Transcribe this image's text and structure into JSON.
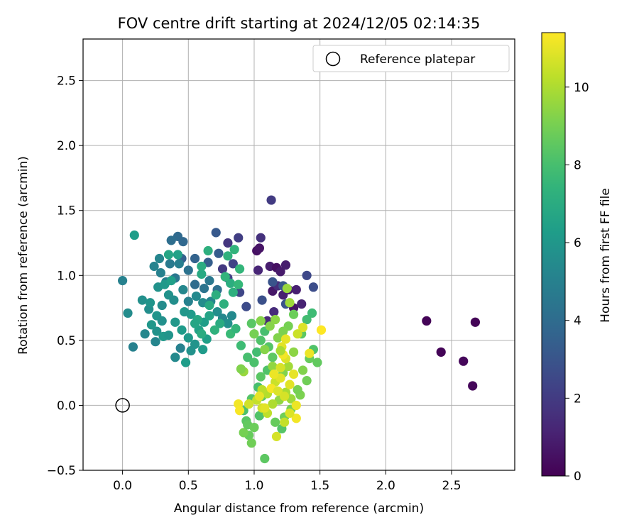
{
  "chart_data": {
    "type": "scatter",
    "title": "FOV centre drift starting at 2024/12/05 02:14:35",
    "xlabel": "Angular distance from reference (arcmin)",
    "ylabel": "Rotation from reference (arcmin)",
    "xlim": [
      -0.3,
      2.98
    ],
    "ylim": [
      -0.5,
      2.82
    ],
    "xticks": [
      0.0,
      0.5,
      1.0,
      1.5,
      2.0,
      2.5
    ],
    "xtick_labels": [
      "0.0",
      "0.5",
      "1.0",
      "1.5",
      "2.0",
      "2.5"
    ],
    "yticks": [
      -0.5,
      0.0,
      0.5,
      1.0,
      1.5,
      2.0,
      2.5
    ],
    "ytick_labels": [
      "−0.5",
      "0.0",
      "0.5",
      "1.0",
      "1.5",
      "2.0",
      "2.5"
    ],
    "grid": true,
    "legend": {
      "placement": "top-right",
      "entries": [
        "Reference platepar"
      ]
    },
    "reference_point": {
      "x": 0.0,
      "y": 0.0
    },
    "colorbar": {
      "label": "Hours from first FF file",
      "range": [
        0,
        11.4
      ],
      "ticks": [
        0,
        2,
        4,
        6,
        8,
        10
      ],
      "tick_labels": [
        "0",
        "2",
        "4",
        "6",
        "8",
        "10"
      ],
      "colormap": "viridis"
    },
    "points": [
      {
        "x": 2.31,
        "y": 0.65,
        "h": 0.1
      },
      {
        "x": 2.42,
        "y": 0.41,
        "h": 0.1
      },
      {
        "x": 2.59,
        "y": 0.34,
        "h": 0.2
      },
      {
        "x": 2.66,
        "y": 0.15,
        "h": 0.2
      },
      {
        "x": 2.68,
        "y": 0.64,
        "h": 0.1
      },
      {
        "x": 1.02,
        "y": 1.19,
        "h": 0.5
      },
      {
        "x": 1.04,
        "y": 1.21,
        "h": 0.6
      },
      {
        "x": 1.12,
        "y": 1.07,
        "h": 0.9
      },
      {
        "x": 1.14,
        "y": 0.88,
        "h": 0.7
      },
      {
        "x": 1.17,
        "y": 1.06,
        "h": 0.5
      },
      {
        "x": 1.2,
        "y": 1.03,
        "h": 0.8
      },
      {
        "x": 1.24,
        "y": 1.08,
        "h": 0.9
      },
      {
        "x": 1.26,
        "y": 0.89,
        "h": 0.8
      },
      {
        "x": 1.3,
        "y": 0.75,
        "h": 0.6
      },
      {
        "x": 1.22,
        "y": 0.85,
        "h": 1.0
      },
      {
        "x": 1.36,
        "y": 0.78,
        "h": 1.1
      },
      {
        "x": 1.03,
        "y": 1.04,
        "h": 1.2
      },
      {
        "x": 1.1,
        "y": 0.65,
        "h": 1.3
      },
      {
        "x": 1.15,
        "y": 0.72,
        "h": 1.4
      },
      {
        "x": 1.32,
        "y": 0.89,
        "h": 1.0
      },
      {
        "x": 1.18,
        "y": 0.92,
        "h": 1.5
      },
      {
        "x": 1.05,
        "y": 1.29,
        "h": 1.6
      },
      {
        "x": 1.13,
        "y": 1.58,
        "h": 2.0
      },
      {
        "x": 0.88,
        "y": 1.29,
        "h": 2.1
      },
      {
        "x": 0.8,
        "y": 1.25,
        "h": 1.8
      },
      {
        "x": 0.76,
        "y": 1.05,
        "h": 1.9
      },
      {
        "x": 0.8,
        "y": 0.98,
        "h": 2.2
      },
      {
        "x": 0.84,
        "y": 1.09,
        "h": 2.3
      },
      {
        "x": 0.89,
        "y": 0.87,
        "h": 2.4
      },
      {
        "x": 0.94,
        "y": 0.76,
        "h": 2.6
      },
      {
        "x": 1.4,
        "y": 1.0,
        "h": 2.5
      },
      {
        "x": 1.45,
        "y": 0.91,
        "h": 2.7
      },
      {
        "x": 1.06,
        "y": 0.81,
        "h": 2.8
      },
      {
        "x": 1.14,
        "y": 0.95,
        "h": 3.0
      },
      {
        "x": 1.22,
        "y": 0.92,
        "h": 3.1
      },
      {
        "x": 1.24,
        "y": 0.78,
        "h": 2.9
      },
      {
        "x": 0.71,
        "y": 1.33,
        "h": 3.2
      },
      {
        "x": 0.73,
        "y": 1.17,
        "h": 3.3
      },
      {
        "x": 0.65,
        "y": 1.1,
        "h": 3.4
      },
      {
        "x": 0.55,
        "y": 1.13,
        "h": 3.6
      },
      {
        "x": 0.45,
        "y": 1.13,
        "h": 3.5
      },
      {
        "x": 0.42,
        "y": 1.3,
        "h": 3.9
      },
      {
        "x": 0.46,
        "y": 1.26,
        "h": 3.8
      },
      {
        "x": 0.37,
        "y": 1.27,
        "h": 4.1
      },
      {
        "x": 0.5,
        "y": 1.04,
        "h": 4.3
      },
      {
        "x": 0.55,
        "y": 0.93,
        "h": 4.0
      },
      {
        "x": 0.62,
        "y": 0.9,
        "h": 4.4
      },
      {
        "x": 0.66,
        "y": 0.96,
        "h": 4.6
      },
      {
        "x": 0.72,
        "y": 0.89,
        "h": 4.2
      },
      {
        "x": 0.4,
        "y": 0.98,
        "h": 4.5
      },
      {
        "x": 0.33,
        "y": 0.95,
        "h": 4.8
      },
      {
        "x": 0.29,
        "y": 1.02,
        "h": 5.0
      },
      {
        "x": 0.36,
        "y": 1.09,
        "h": 4.7
      },
      {
        "x": 0.43,
        "y": 1.09,
        "h": 4.9
      },
      {
        "x": 0.24,
        "y": 1.07,
        "h": 5.1
      },
      {
        "x": 0.28,
        "y": 1.13,
        "h": 5.2
      },
      {
        "x": 0.46,
        "y": 0.89,
        "h": 5.3
      },
      {
        "x": 0.5,
        "y": 0.8,
        "h": 5.0
      },
      {
        "x": 0.56,
        "y": 0.84,
        "h": 5.4
      },
      {
        "x": 0.61,
        "y": 0.79,
        "h": 5.5
      },
      {
        "x": 0.67,
        "y": 0.8,
        "h": 5.2
      },
      {
        "x": 0.72,
        "y": 0.72,
        "h": 5.6
      },
      {
        "x": 0.76,
        "y": 0.67,
        "h": 5.3
      },
      {
        "x": 0.8,
        "y": 0.63,
        "h": 5.7
      },
      {
        "x": 0.83,
        "y": 0.69,
        "h": 5.4
      },
      {
        "x": 0.3,
        "y": 0.77,
        "h": 5.5
      },
      {
        "x": 0.35,
        "y": 0.85,
        "h": 5.8
      },
      {
        "x": 0.39,
        "y": 0.81,
        "h": 5.6
      },
      {
        "x": 0.26,
        "y": 0.69,
        "h": 5.9
      },
      {
        "x": 0.3,
        "y": 0.65,
        "h": 5.7
      },
      {
        "x": 0.22,
        "y": 0.62,
        "h": 6.0
      },
      {
        "x": 0.26,
        "y": 0.57,
        "h": 5.8
      },
      {
        "x": 0.31,
        "y": 0.53,
        "h": 6.1
      },
      {
        "x": 0.35,
        "y": 0.54,
        "h": 5.9
      },
      {
        "x": 0.25,
        "y": 0.49,
        "h": 5.2
      },
      {
        "x": 0.4,
        "y": 0.64,
        "h": 6.0
      },
      {
        "x": 0.45,
        "y": 0.58,
        "h": 6.2
      },
      {
        "x": 0.5,
        "y": 0.52,
        "h": 6.1
      },
      {
        "x": 0.55,
        "y": 0.47,
        "h": 5.9
      },
      {
        "x": 0.44,
        "y": 0.44,
        "h": 5.0
      },
      {
        "x": 0.4,
        "y": 0.37,
        "h": 5.4
      },
      {
        "x": 0.48,
        "y": 0.33,
        "h": 6.3
      },
      {
        "x": 0.52,
        "y": 0.42,
        "h": 5.8
      },
      {
        "x": 0.61,
        "y": 0.43,
        "h": 6.2
      },
      {
        "x": 0.64,
        "y": 0.51,
        "h": 6.4
      },
      {
        "x": 0.58,
        "y": 0.58,
        "h": 6.5
      },
      {
        "x": 0.62,
        "y": 0.64,
        "h": 6.3
      },
      {
        "x": 0.66,
        "y": 0.69,
        "h": 6.6
      },
      {
        "x": 0.52,
        "y": 0.7,
        "h": 6.2
      },
      {
        "x": 0.47,
        "y": 0.72,
        "h": 6.0
      },
      {
        "x": 0.2,
        "y": 0.74,
        "h": 5.6
      },
      {
        "x": 0.15,
        "y": 0.81,
        "h": 5.7
      },
      {
        "x": 0.21,
        "y": 0.79,
        "h": 5.9
      },
      {
        "x": 0.27,
        "y": 0.91,
        "h": 5.8
      },
      {
        "x": 0.32,
        "y": 0.93,
        "h": 6.1
      },
      {
        "x": 0.37,
        "y": 0.96,
        "h": 6.4
      },
      {
        "x": 0.42,
        "y": 1.16,
        "h": 6.5
      },
      {
        "x": 0.35,
        "y": 1.16,
        "h": 6.7
      },
      {
        "x": 0.6,
        "y": 1.01,
        "h": 6.9
      },
      {
        "x": 0.65,
        "y": 1.19,
        "h": 7.2
      },
      {
        "x": 0.6,
        "y": 1.07,
        "h": 7.0
      },
      {
        "x": 0.8,
        "y": 1.15,
        "h": 7.3
      },
      {
        "x": 0.85,
        "y": 1.2,
        "h": 7.4
      },
      {
        "x": 0.89,
        "y": 1.05,
        "h": 7.5
      },
      {
        "x": 0.82,
        "y": 0.94,
        "h": 7.1
      },
      {
        "x": 0.77,
        "y": 0.78,
        "h": 7.2
      },
      {
        "x": 0.74,
        "y": 0.63,
        "h": 7.0
      },
      {
        "x": 0.7,
        "y": 0.58,
        "h": 7.3
      },
      {
        "x": 0.66,
        "y": 0.77,
        "h": 6.9
      },
      {
        "x": 0.71,
        "y": 0.85,
        "h": 7.1
      },
      {
        "x": 0.57,
        "y": 0.66,
        "h": 6.8
      },
      {
        "x": 0.6,
        "y": 0.55,
        "h": 7.0
      },
      {
        "x": 0.55,
        "y": 0.63,
        "h": 6.7
      },
      {
        "x": 0.84,
        "y": 0.87,
        "h": 7.2
      },
      {
        "x": 0.88,
        "y": 0.93,
        "h": 7.6
      },
      {
        "x": 0.78,
        "y": 0.99,
        "h": 7.4
      },
      {
        "x": 0.82,
        "y": 0.55,
        "h": 7.7
      },
      {
        "x": 0.86,
        "y": 0.59,
        "h": 7.5
      },
      {
        "x": 0.9,
        "y": 0.46,
        "h": 7.8
      },
      {
        "x": 0.95,
        "y": 0.37,
        "h": 8.0
      },
      {
        "x": 0.98,
        "y": 0.63,
        "h": 8.4
      },
      {
        "x": 1.0,
        "y": 0.33,
        "h": 8.1
      },
      {
        "x": 1.02,
        "y": 0.41,
        "h": 7.9
      },
      {
        "x": 1.05,
        "y": 0.5,
        "h": 8.2
      },
      {
        "x": 1.08,
        "y": 0.57,
        "h": 8.0
      },
      {
        "x": 1.11,
        "y": 0.45,
        "h": 8.3
      },
      {
        "x": 1.14,
        "y": 0.37,
        "h": 8.5
      },
      {
        "x": 1.1,
        "y": 0.27,
        "h": 8.2
      },
      {
        "x": 1.05,
        "y": 0.22,
        "h": 8.4
      },
      {
        "x": 1.03,
        "y": 0.14,
        "h": 8.0
      },
      {
        "x": 1.06,
        "y": 0.07,
        "h": 8.6
      },
      {
        "x": 0.98,
        "y": 0.05,
        "h": 8.3
      },
      {
        "x": 0.92,
        "y": -0.04,
        "h": 8.1
      },
      {
        "x": 0.94,
        "y": -0.12,
        "h": 8.4
      },
      {
        "x": 0.96,
        "y": -0.23,
        "h": 8.7
      },
      {
        "x": 0.98,
        "y": -0.29,
        "h": 8.9
      },
      {
        "x": 0.92,
        "y": -0.21,
        "h": 9.0
      },
      {
        "x": 0.95,
        "y": -0.15,
        "h": 8.6
      },
      {
        "x": 1.04,
        "y": -0.08,
        "h": 8.2
      },
      {
        "x": 1.08,
        "y": -0.41,
        "h": 8.5
      },
      {
        "x": 1.0,
        "y": -0.17,
        "h": 8.8
      },
      {
        "x": 1.21,
        "y": -0.18,
        "h": 8.3
      },
      {
        "x": 1.16,
        "y": -0.13,
        "h": 8.7
      },
      {
        "x": 1.23,
        "y": -0.09,
        "h": 8.9
      },
      {
        "x": 1.28,
        "y": -0.03,
        "h": 9.0
      },
      {
        "x": 1.35,
        "y": 0.08,
        "h": 9.1
      },
      {
        "x": 1.4,
        "y": 0.19,
        "h": 8.9
      },
      {
        "x": 1.37,
        "y": 0.27,
        "h": 9.2
      },
      {
        "x": 1.42,
        "y": 0.36,
        "h": 8.7
      },
      {
        "x": 1.45,
        "y": 0.43,
        "h": 8.2
      },
      {
        "x": 1.48,
        "y": 0.33,
        "h": 8.6
      },
      {
        "x": 1.44,
        "y": 0.71,
        "h": 7.8
      },
      {
        "x": 1.4,
        "y": 0.66,
        "h": 7.9
      },
      {
        "x": 1.36,
        "y": 0.55,
        "h": 8.5
      },
      {
        "x": 1.3,
        "y": 0.7,
        "h": 8.8
      },
      {
        "x": 1.26,
        "y": 0.61,
        "h": 9.0
      },
      {
        "x": 1.22,
        "y": 0.57,
        "h": 9.1
      },
      {
        "x": 1.18,
        "y": 0.52,
        "h": 9.2
      },
      {
        "x": 1.12,
        "y": 0.61,
        "h": 9.3
      },
      {
        "x": 1.16,
        "y": 0.66,
        "h": 9.4
      },
      {
        "x": 1.08,
        "y": 0.43,
        "h": 9.3
      },
      {
        "x": 1.14,
        "y": 0.3,
        "h": 9.5
      },
      {
        "x": 1.18,
        "y": 0.21,
        "h": 9.6
      },
      {
        "x": 1.22,
        "y": 0.25,
        "h": 9.2
      },
      {
        "x": 1.26,
        "y": 0.3,
        "h": 9.8
      },
      {
        "x": 1.3,
        "y": 0.41,
        "h": 9.4
      },
      {
        "x": 1.33,
        "y": 0.12,
        "h": 9.0
      },
      {
        "x": 1.28,
        "y": 0.05,
        "h": 9.7
      },
      {
        "x": 1.24,
        "y": 0.1,
        "h": 9.9
      },
      {
        "x": 1.19,
        "y": 0.04,
        "h": 9.5
      },
      {
        "x": 1.14,
        "y": 0.01,
        "h": 10.0
      },
      {
        "x": 1.1,
        "y": 0.09,
        "h": 10.1
      },
      {
        "x": 1.06,
        "y": 0.12,
        "h": 10.2
      },
      {
        "x": 1.02,
        "y": 0.04,
        "h": 10.4
      },
      {
        "x": 1.06,
        "y": -0.02,
        "h": 10.6
      },
      {
        "x": 1.1,
        "y": -0.06,
        "h": 10.3
      },
      {
        "x": 1.16,
        "y": 0.18,
        "h": 10.5
      },
      {
        "x": 1.2,
        "y": 0.29,
        "h": 10.7
      },
      {
        "x": 1.24,
        "y": 0.36,
        "h": 10.8
      },
      {
        "x": 1.21,
        "y": 0.45,
        "h": 10.9
      },
      {
        "x": 1.24,
        "y": 0.51,
        "h": 11.0
      },
      {
        "x": 1.22,
        "y": 0.39,
        "h": 11.2
      },
      {
        "x": 1.2,
        "y": 0.21,
        "h": 10.9
      },
      {
        "x": 1.15,
        "y": 0.24,
        "h": 11.1
      },
      {
        "x": 1.13,
        "y": 0.13,
        "h": 11.3
      },
      {
        "x": 1.18,
        "y": 0.11,
        "h": 10.8
      },
      {
        "x": 1.23,
        "y": 0.07,
        "h": 10.7
      },
      {
        "x": 1.27,
        "y": 0.16,
        "h": 10.9
      },
      {
        "x": 1.3,
        "y": 0.24,
        "h": 11.0
      },
      {
        "x": 1.32,
        "y": 0.0,
        "h": 11.1
      },
      {
        "x": 1.32,
        "y": -0.1,
        "h": 11.2
      },
      {
        "x": 1.27,
        "y": -0.06,
        "h": 10.8
      },
      {
        "x": 1.23,
        "y": -0.13,
        "h": 10.4
      },
      {
        "x": 1.17,
        "y": -0.24,
        "h": 10.7
      },
      {
        "x": 1.08,
        "y": -0.02,
        "h": 10.9
      },
      {
        "x": 1.04,
        "y": 0.07,
        "h": 11.0
      },
      {
        "x": 0.96,
        "y": 0.01,
        "h": 10.6
      },
      {
        "x": 0.88,
        "y": 0.01,
        "h": 11.2
      },
      {
        "x": 0.89,
        "y": -0.04,
        "h": 11.3
      },
      {
        "x": 1.51,
        "y": 0.58,
        "h": 11.4
      },
      {
        "x": 1.42,
        "y": 0.4,
        "h": 11.1
      },
      {
        "x": 1.37,
        "y": 0.6,
        "h": 10.8
      },
      {
        "x": 1.33,
        "y": 0.55,
        "h": 10.5
      },
      {
        "x": 0.92,
        "y": 0.26,
        "h": 9.6
      },
      {
        "x": 0.9,
        "y": 0.28,
        "h": 9.2
      },
      {
        "x": 1.0,
        "y": 0.55,
        "h": 9.0
      },
      {
        "x": 1.05,
        "y": 0.65,
        "h": 9.3
      },
      {
        "x": 1.27,
        "y": 0.79,
        "h": 9.7
      },
      {
        "x": 1.25,
        "y": 0.9,
        "h": 9.6
      },
      {
        "x": 1.2,
        "y": 0.42,
        "h": 9.9
      },
      {
        "x": 0.17,
        "y": 0.55,
        "h": 5.3
      },
      {
        "x": 0.09,
        "y": 1.31,
        "h": 6.3
      },
      {
        "x": 0.0,
        "y": 0.96,
        "h": 5.0
      },
      {
        "x": 0.04,
        "y": 0.71,
        "h": 5.5
      },
      {
        "x": 0.08,
        "y": 0.45,
        "h": 5.0
      }
    ]
  }
}
